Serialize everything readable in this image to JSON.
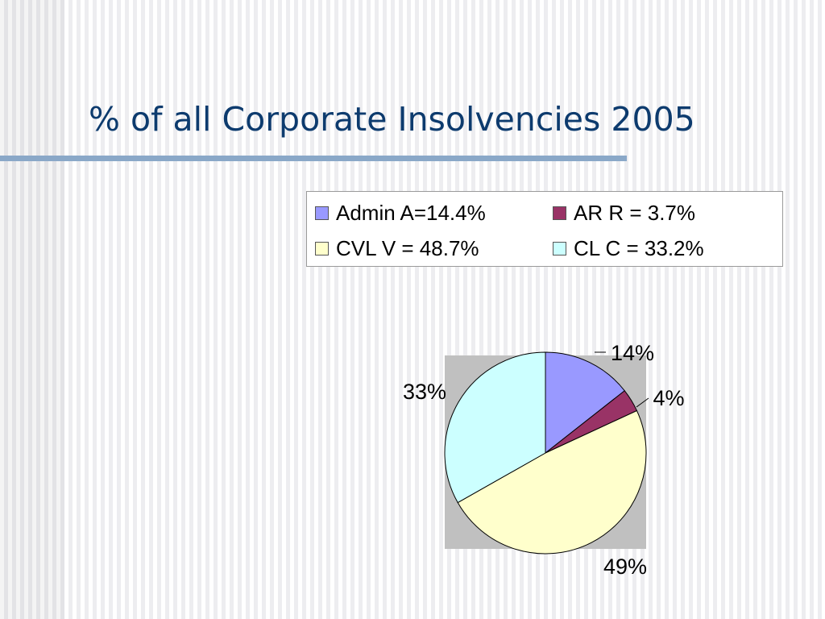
{
  "slide": {
    "title": "% of all Corporate Insolvencies 2005"
  },
  "chart_data": {
    "type": "pie",
    "title": "",
    "legend_position": "top-right",
    "plot_background": "#c0c0c0",
    "slices": [
      {
        "legend": "Admin A=14.4%",
        "value": 14.4,
        "label": "14%",
        "color": "#9999ff"
      },
      {
        "legend": "AR R = 3.7%",
        "value": 3.7,
        "label": "4%",
        "color": "#993366"
      },
      {
        "legend": "CVL V = 48.7%",
        "value": 48.7,
        "label": "49%",
        "color": "#ffffcc"
      },
      {
        "legend": "CL C = 33.2%",
        "value": 33.2,
        "label": "33%",
        "color": "#ccffff"
      }
    ]
  }
}
